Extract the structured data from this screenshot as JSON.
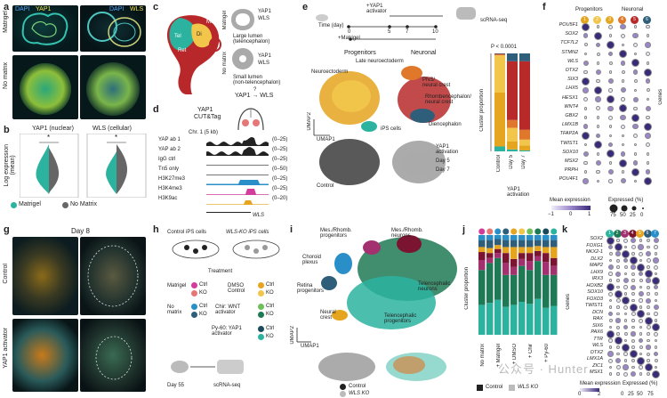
{
  "panels": {
    "a": "a",
    "b": "b",
    "c": "c",
    "d": "d",
    "e": "e",
    "f": "f",
    "g": "g",
    "h": "h",
    "i": "i",
    "j": "j",
    "k": "k"
  },
  "a": {
    "col1": [
      "DAPI",
      "YAP1"
    ],
    "col2": [
      "DAPI",
      "WLS"
    ],
    "row1": "Matrigel",
    "row2": "No matrix"
  },
  "b": {
    "ylabel": "Log expression\n(mean)",
    "plot1": "YAP1 (nuclear)",
    "plot2": "WLS (cellular)",
    "sig": "*",
    "legend": [
      "Matrigel",
      "No Matrix"
    ],
    "colors": {
      "matrigel": "#2bb3a0",
      "nomatrix": "#666666"
    }
  },
  "c": {
    "top": "Large lumen\n(telencephalon)",
    "bottom": "Small lumen\n(non-telencephalon)",
    "side1": "Matrigel",
    "side2": "No matrix",
    "yap_top": "YAP1",
    "wls_top": "WLS",
    "yap_bot": "YAP1",
    "wls_bot": "WLS",
    "eq": "YAP1 → WLS",
    "q": "?",
    "tel": "Tel",
    "ret": "Ret",
    "di": "Di",
    "mes": "Mes"
  },
  "d": {
    "title1": "YAP1",
    "title2": "CUT&Tag",
    "chr": "Chr. 1 (5 kb)",
    "gene": "WLS",
    "tracks": [
      {
        "name": "YAP ab 1",
        "range": "(0–25)",
        "color": "#222"
      },
      {
        "name": "YAP ab 2",
        "range": "(0–25)",
        "color": "#222"
      },
      {
        "name": "IgG ctrl",
        "range": "(0–25)",
        "color": "#777"
      },
      {
        "name": "Tn5 only",
        "range": "(0–50)",
        "color": "#777"
      },
      {
        "name": "H3K27me3",
        "range": "(0–25)",
        "color": "#2a8fc9"
      },
      {
        "name": "H3K4me3",
        "range": "(0–25)",
        "color": "#d43c9b"
      },
      {
        "name": "H3K9ac",
        "range": "(0–20)",
        "color": "#e5a51f"
      }
    ]
  },
  "e": {
    "time": "Time (day)",
    "ticks": [
      "0",
      "5",
      "7",
      "10"
    ],
    "yap": "+YAP1\nactivator",
    "matrigel": "+Matrigel",
    "seq": "scRNA-seq",
    "prog": "Progenitors",
    "neur": "Neuronal",
    "clusters": [
      {
        "id": "1",
        "name": "iPS cells",
        "color": "#2bb3a0"
      },
      {
        "id": "2",
        "name": "Neuroectoderm",
        "color": "#e5a51f"
      },
      {
        "id": "3",
        "name": "Late neuroectoderm",
        "color": "#f1c64b"
      },
      {
        "id": "4",
        "name": "PNS/\nneural crest",
        "color": "#e0782b"
      },
      {
        "id": "5",
        "name": "Rhombencephalon/\nneural crest",
        "color": "#b82a2a"
      },
      {
        "id": "6",
        "name": "Diencephalon",
        "color": "#2f5e7a"
      }
    ],
    "umap1": "UMAP1",
    "umap2": "UMAP2",
    "control": "Control",
    "day5": "Day 5",
    "day7": "Day 7",
    "yapact": "YAP1\nactivation",
    "pval": "P < 0.0001",
    "ylab": "Cluster proportion",
    "xlabels": [
      "Control",
      "Day 5",
      "Day 7"
    ],
    "xgroup": "YAP1\nactivation"
  },
  "f": {
    "groups": [
      "Progenitors",
      "Neuronal"
    ],
    "cols": [
      "1",
      "2",
      "3",
      "4",
      "5",
      "6"
    ],
    "genes": [
      "POU5F1",
      "SOX2",
      "TCF7L2",
      "STMN2",
      "WLS",
      "OTX2",
      "SIX3",
      "LHX5",
      "HESX1",
      "WNT4",
      "GBX2",
      "LMX1B",
      "TFAP2A",
      "TWIST1",
      "SOX10",
      "MSX2",
      "PRPH",
      "POU4F1"
    ],
    "ylab": "Genes",
    "cbar": "Mean expression",
    "cbar_ticks": [
      "−1",
      "0",
      "1"
    ],
    "size": "Expressed (%)",
    "size_ticks": [
      "75",
      "50",
      "25",
      "0"
    ]
  },
  "g": {
    "title": "Day 8",
    "row1": "Control",
    "row2": "YAP1 activator"
  },
  "h": {
    "ctrl": "Control iPS cells",
    "ko": "WLS-KO iPS cells",
    "treat": "Treatment",
    "matrigel": "Matrigel",
    "nomatrix": "No\nmatrix",
    "dmso": "DMSO\nControl",
    "chir": "Chir: WNT\nactivator",
    "py": "Py-60: YAP1\nactivator",
    "ctrl_lbl": "Ctrl",
    "ko_lbl": "KO",
    "day": "Day 55",
    "seq": "scRNA-seq"
  },
  "i": {
    "clusters": [
      {
        "id": "1",
        "name": "Telencephalic\nprogenitors",
        "color": "#2bb3a0"
      },
      {
        "id": "2",
        "name": "Telencephalic\nneurons",
        "color": "#1e7a55"
      },
      {
        "id": "3",
        "name": "Mes./Rhomb.\nprogenitors",
        "color": "#a3306f"
      },
      {
        "id": "4",
        "name": "Mes./Rhomb.\nneurons",
        "color": "#7a1430"
      },
      {
        "id": "5",
        "name": "Neural\ncrest",
        "color": "#e5a51f"
      },
      {
        "id": "6",
        "name": "Retina\nprogenitors",
        "color": "#2f5e7a"
      },
      {
        "id": "7",
        "name": "Choroid\nplexus",
        "color": "#2a8fc9"
      }
    ],
    "umap1": "UMAP1",
    "umap2": "UMAP2",
    "control": "Control",
    "wlsko": "WLS KO"
  },
  "j": {
    "ylab": "Cluster proportion",
    "xlabels": [
      "No matrix",
      "+ Matrigel",
      "+ DMSO",
      "+ Chir",
      "+ Py-60"
    ],
    "legend": [
      "Control",
      "WLS KO"
    ]
  },
  "k": {
    "cols": [
      "1",
      "2",
      "3",
      "4",
      "5",
      "6",
      "7"
    ],
    "genes": [
      "SOX2",
      "FOXG1",
      "NKX2-1",
      "DLX2",
      "MAP2",
      "LHX9",
      "IRX3",
      "HOXB2",
      "SOX10",
      "FOXD3",
      "TWIST1",
      "DCN",
      "RAX",
      "SIX6",
      "PAX6",
      "TTR",
      "WLS",
      "OTX2",
      "LMX1A",
      "ZIC1",
      "MSX1"
    ],
    "ylab": "Genes",
    "cbar": "Mean expression",
    "cbar_ticks": [
      "0",
      "2"
    ],
    "size": "Expressed (%)",
    "size_ticks": [
      "0",
      "25",
      "50",
      "75"
    ]
  },
  "watermark": "公众号 · Hunter"
}
